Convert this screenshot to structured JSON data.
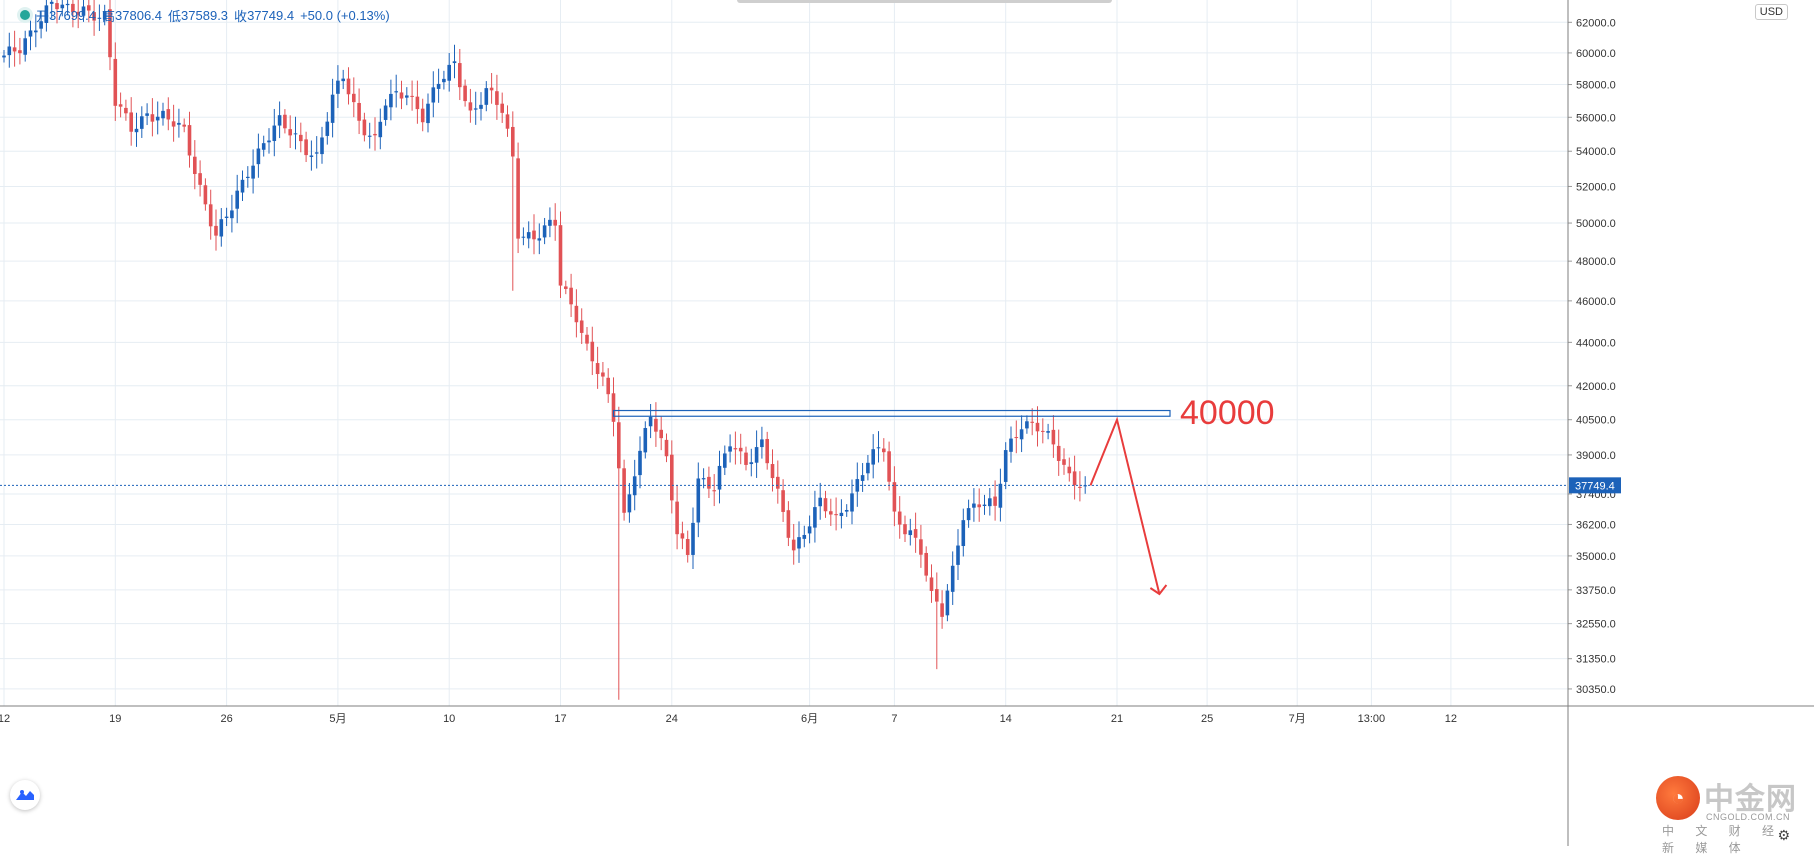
{
  "ohlc": {
    "open_label": "开",
    "open": "37699.4",
    "high_label": "高",
    "high": "37806.4",
    "low_label": "低",
    "low": "37589.3",
    "close_label": "收",
    "close": "37749.4",
    "change": "+50.0 (+0.13%)"
  },
  "currency": "USD",
  "last_price": "37749.4",
  "annotation_text": "40000",
  "watermark": {
    "name": "中金网",
    "domain": "CNGOLD.COM.CN",
    "tagline": "中 文 财 经 新 媒 体"
  },
  "colors": {
    "up": "#1c62b9",
    "down": "#e15255",
    "price_tag": "#1c62b9",
    "annotation": "#e83c3c",
    "grid": "#e6edf3"
  },
  "chart_data": {
    "type": "candlestick",
    "title": "",
    "xlabel": "",
    "ylabel": "",
    "ylim": [
      29800,
      63500
    ],
    "y_scale": "log",
    "grid": true,
    "y_ticks": [
      "30350.0",
      "31350.0",
      "32550.0",
      "33750.0",
      "35000.0",
      "36200.0",
      "37400.0",
      "39000.0",
      "40500.0",
      "42000.0",
      "44000.0",
      "46000.0",
      "48000.0",
      "50000.0",
      "52000.0",
      "54000.0",
      "56000.0",
      "58000.0",
      "60000.0",
      "62000.0"
    ],
    "x_ticks": [
      {
        "label": "12",
        "i": 0
      },
      {
        "label": "19",
        "i": 21
      },
      {
        "label": "26",
        "i": 42
      },
      {
        "label": "5月",
        "i": 63
      },
      {
        "label": "10",
        "i": 84
      },
      {
        "label": "17",
        "i": 105
      },
      {
        "label": "24",
        "i": 126
      },
      {
        "label": "6月",
        "i": 152
      },
      {
        "label": "7",
        "i": 168
      },
      {
        "label": "14",
        "i": 189
      },
      {
        "label": "21",
        "i": 210
      },
      {
        "label": "25",
        "i": 227
      },
      {
        "label": "7月",
        "i": 244
      },
      {
        "label": "13:00",
        "i": 258
      },
      {
        "label": "12",
        "i": 273
      }
    ],
    "price_anchors": [
      [
        0,
        59600
      ],
      [
        3,
        60300
      ],
      [
        6,
        62000
      ],
      [
        9,
        63200
      ],
      [
        12,
        62700
      ],
      [
        15,
        63000
      ],
      [
        19,
        62300
      ],
      [
        21,
        56800
      ],
      [
        24,
        55400
      ],
      [
        27,
        56300
      ],
      [
        30,
        55900
      ],
      [
        34,
        55200
      ],
      [
        37,
        52000
      ],
      [
        40,
        49200
      ],
      [
        43,
        50800
      ],
      [
        46,
        53000
      ],
      [
        49,
        54500
      ],
      [
        52,
        55600
      ],
      [
        56,
        54600
      ],
      [
        59,
        53700
      ],
      [
        62,
        57000
      ],
      [
        64,
        58500
      ],
      [
        67,
        55900
      ],
      [
        70,
        54600
      ],
      [
        72,
        56800
      ],
      [
        76,
        57600
      ],
      [
        79,
        56200
      ],
      [
        82,
        58000
      ],
      [
        85,
        59200
      ],
      [
        88,
        56300
      ],
      [
        91,
        57600
      ],
      [
        94,
        56300
      ],
      [
        96,
        53600
      ],
      [
        97,
        49600
      ],
      [
        100,
        49300
      ],
      [
        104,
        49900
      ],
      [
        105,
        46800
      ],
      [
        108,
        45400
      ],
      [
        110,
        43800
      ],
      [
        113,
        42100
      ],
      [
        115,
        40500
      ],
      [
        117,
        36500
      ],
      [
        119,
        38500
      ],
      [
        122,
        40700
      ],
      [
        125,
        38700
      ],
      [
        127,
        35900
      ],
      [
        129,
        35200
      ],
      [
        131,
        38000
      ],
      [
        134,
        37500
      ],
      [
        137,
        39600
      ],
      [
        140,
        38800
      ],
      [
        143,
        39400
      ],
      [
        146,
        37300
      ],
      [
        149,
        35300
      ],
      [
        151,
        36000
      ],
      [
        154,
        37000
      ],
      [
        157,
        36300
      ],
      [
        160,
        37500
      ],
      [
        163,
        38800
      ],
      [
        166,
        39200
      ],
      [
        168,
        36500
      ],
      [
        171,
        36000
      ],
      [
        173,
        35200
      ],
      [
        175,
        33400
      ],
      [
        177,
        32900
      ],
      [
        179,
        34500
      ],
      [
        181,
        36700
      ],
      [
        184,
        37000
      ],
      [
        187,
        36800
      ],
      [
        189,
        39200
      ],
      [
        192,
        40400
      ],
      [
        195,
        40100
      ],
      [
        198,
        39400
      ],
      [
        201,
        38200
      ],
      [
        204,
        37750
      ]
    ],
    "trend_lines": [
      {
        "name": "resistance-band",
        "x": [
          115,
          220
        ],
        "y": [
          40650,
          40900
        ]
      },
      {
        "name": "forecast-path",
        "x": [
          205,
          210,
          218
        ],
        "y": [
          37749.4,
          40500,
          33600
        ]
      }
    ]
  }
}
